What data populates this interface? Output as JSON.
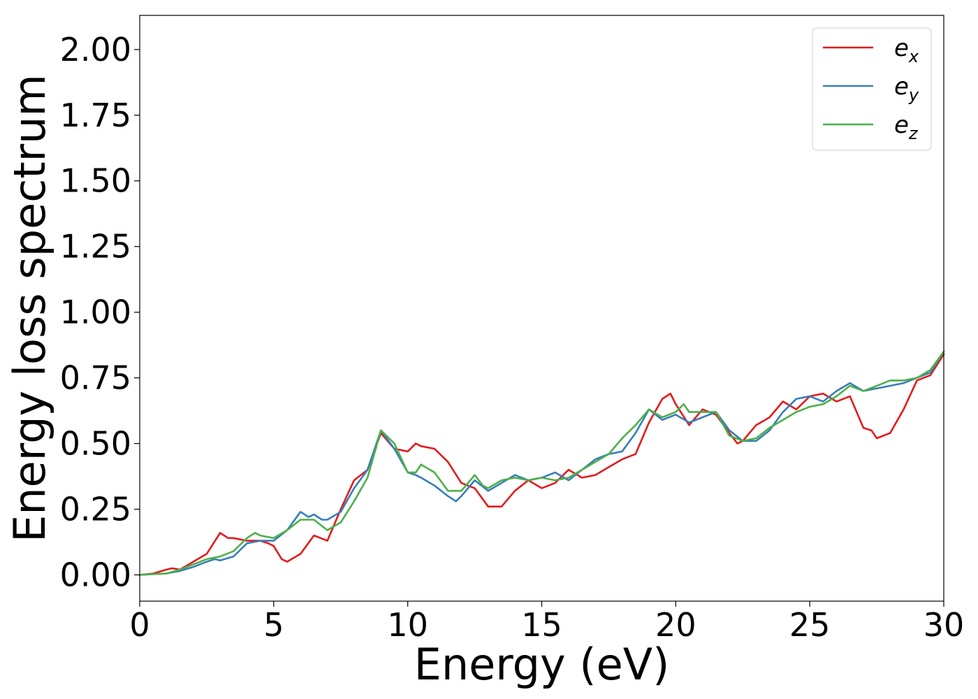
{
  "chart_data": {
    "type": "line",
    "title": "",
    "xlabel": "Energy (eV)",
    "ylabel": "Energy loss spectrum",
    "xlim": [
      0,
      30
    ],
    "ylim": [
      -0.1,
      2.13
    ],
    "xticks": [
      0,
      5,
      10,
      15,
      20,
      25,
      30
    ],
    "xtick_labels": [
      "0",
      "5",
      "10",
      "15",
      "20",
      "25",
      "30"
    ],
    "yticks": [
      0,
      0.25,
      0.5,
      0.75,
      1.0,
      1.25,
      1.5,
      1.75,
      2.0
    ],
    "ytick_labels": [
      "0.00",
      "0.25",
      "0.50",
      "0.75",
      "1.00",
      "1.25",
      "1.50",
      "1.75",
      "2.00"
    ],
    "grid": false,
    "legend_position": "top-right",
    "series": [
      {
        "name": "e",
        "subscript": "x",
        "color": "#e41a1c",
        "x": [
          0,
          0.5,
          1.0,
          1.2,
          1.5,
          2.0,
          2.5,
          3.0,
          3.3,
          3.5,
          4.0,
          4.5,
          4.8,
          5.0,
          5.3,
          5.5,
          6.0,
          6.5,
          7.0,
          7.5,
          8.0,
          8.5,
          9.0,
          9.5,
          10.0,
          10.3,
          10.5,
          11.0,
          11.5,
          12.0,
          12.5,
          13.0,
          13.5,
          14.0,
          14.5,
          15.0,
          15.5,
          16.0,
          16.5,
          17.0,
          17.5,
          18.0,
          18.5,
          19.0,
          19.5,
          19.8,
          20.0,
          20.5,
          21.0,
          21.5,
          22.0,
          22.3,
          22.5,
          23.0,
          23.5,
          24.0,
          24.5,
          25.0,
          25.5,
          26.0,
          26.5,
          27.0,
          27.3,
          27.5,
          28.0,
          28.5,
          29.0,
          29.5,
          30.0
        ],
        "y": [
          0.0,
          0.005,
          0.02,
          0.025,
          0.02,
          0.05,
          0.08,
          0.16,
          0.14,
          0.14,
          0.13,
          0.13,
          0.12,
          0.11,
          0.06,
          0.05,
          0.08,
          0.15,
          0.13,
          0.25,
          0.36,
          0.4,
          0.54,
          0.48,
          0.47,
          0.5,
          0.49,
          0.48,
          0.43,
          0.35,
          0.33,
          0.26,
          0.26,
          0.32,
          0.36,
          0.33,
          0.35,
          0.4,
          0.37,
          0.38,
          0.41,
          0.44,
          0.46,
          0.58,
          0.67,
          0.69,
          0.65,
          0.57,
          0.63,
          0.61,
          0.54,
          0.5,
          0.51,
          0.57,
          0.6,
          0.66,
          0.63,
          0.68,
          0.69,
          0.66,
          0.68,
          0.56,
          0.55,
          0.52,
          0.54,
          0.63,
          0.74,
          0.76,
          0.84
        ]
      },
      {
        "name": "e",
        "subscript": "y",
        "color": "#377eb8",
        "x": [
          0,
          0.5,
          1.0,
          1.5,
          2.0,
          2.5,
          2.8,
          3.0,
          3.5,
          4.0,
          4.5,
          5.0,
          5.5,
          6.0,
          6.3,
          6.5,
          6.8,
          7.0,
          7.5,
          8.0,
          8.5,
          9.0,
          9.5,
          10.0,
          10.3,
          10.5,
          11.0,
          11.5,
          11.8,
          12.0,
          12.5,
          13.0,
          13.5,
          14.0,
          14.5,
          15.0,
          15.5,
          16.0,
          16.5,
          17.0,
          17.5,
          18.0,
          18.5,
          19.0,
          19.5,
          20.0,
          20.5,
          21.0,
          21.5,
          22.0,
          22.5,
          23.0,
          23.5,
          24.0,
          24.5,
          25.0,
          25.5,
          26.0,
          26.5,
          27.0,
          27.5,
          28.0,
          28.5,
          29.0,
          29.5,
          30.0
        ],
        "y": [
          0.0,
          0.003,
          0.005,
          0.015,
          0.03,
          0.05,
          0.06,
          0.055,
          0.07,
          0.12,
          0.13,
          0.13,
          0.17,
          0.24,
          0.22,
          0.23,
          0.21,
          0.21,
          0.24,
          0.33,
          0.4,
          0.55,
          0.48,
          0.39,
          0.38,
          0.37,
          0.34,
          0.3,
          0.28,
          0.3,
          0.36,
          0.32,
          0.35,
          0.38,
          0.36,
          0.37,
          0.39,
          0.36,
          0.4,
          0.44,
          0.46,
          0.47,
          0.54,
          0.63,
          0.59,
          0.61,
          0.58,
          0.6,
          0.62,
          0.55,
          0.51,
          0.51,
          0.55,
          0.62,
          0.67,
          0.68,
          0.66,
          0.7,
          0.73,
          0.7,
          0.71,
          0.72,
          0.73,
          0.75,
          0.77,
          0.85
        ]
      },
      {
        "name": "e",
        "subscript": "z",
        "color": "#4daf4a",
        "x": [
          0,
          0.5,
          1.0,
          1.5,
          2.0,
          2.5,
          3.0,
          3.5,
          4.0,
          4.3,
          4.5,
          5.0,
          5.5,
          6.0,
          6.5,
          7.0,
          7.5,
          8.0,
          8.5,
          9.0,
          9.5,
          10.0,
          10.3,
          10.5,
          11.0,
          11.5,
          12.0,
          12.5,
          12.8,
          13.0,
          13.5,
          14.0,
          14.5,
          15.0,
          15.5,
          16.0,
          16.5,
          17.0,
          17.5,
          18.0,
          18.5,
          19.0,
          19.5,
          20.0,
          20.3,
          20.5,
          21.0,
          21.5,
          22.0,
          22.5,
          23.0,
          23.5,
          24.0,
          24.5,
          25.0,
          25.5,
          26.0,
          26.5,
          27.0,
          27.5,
          28.0,
          28.5,
          29.0,
          29.5,
          30.0
        ],
        "y": [
          0.0,
          0.003,
          0.005,
          0.02,
          0.04,
          0.06,
          0.07,
          0.09,
          0.14,
          0.16,
          0.15,
          0.14,
          0.17,
          0.21,
          0.21,
          0.17,
          0.2,
          0.28,
          0.37,
          0.55,
          0.5,
          0.39,
          0.39,
          0.42,
          0.39,
          0.32,
          0.32,
          0.38,
          0.34,
          0.33,
          0.36,
          0.37,
          0.36,
          0.37,
          0.36,
          0.37,
          0.4,
          0.43,
          0.46,
          0.52,
          0.57,
          0.63,
          0.6,
          0.62,
          0.65,
          0.62,
          0.62,
          0.62,
          0.53,
          0.51,
          0.52,
          0.56,
          0.59,
          0.62,
          0.64,
          0.65,
          0.68,
          0.72,
          0.7,
          0.72,
          0.74,
          0.74,
          0.75,
          0.78,
          0.85
        ]
      }
    ]
  }
}
